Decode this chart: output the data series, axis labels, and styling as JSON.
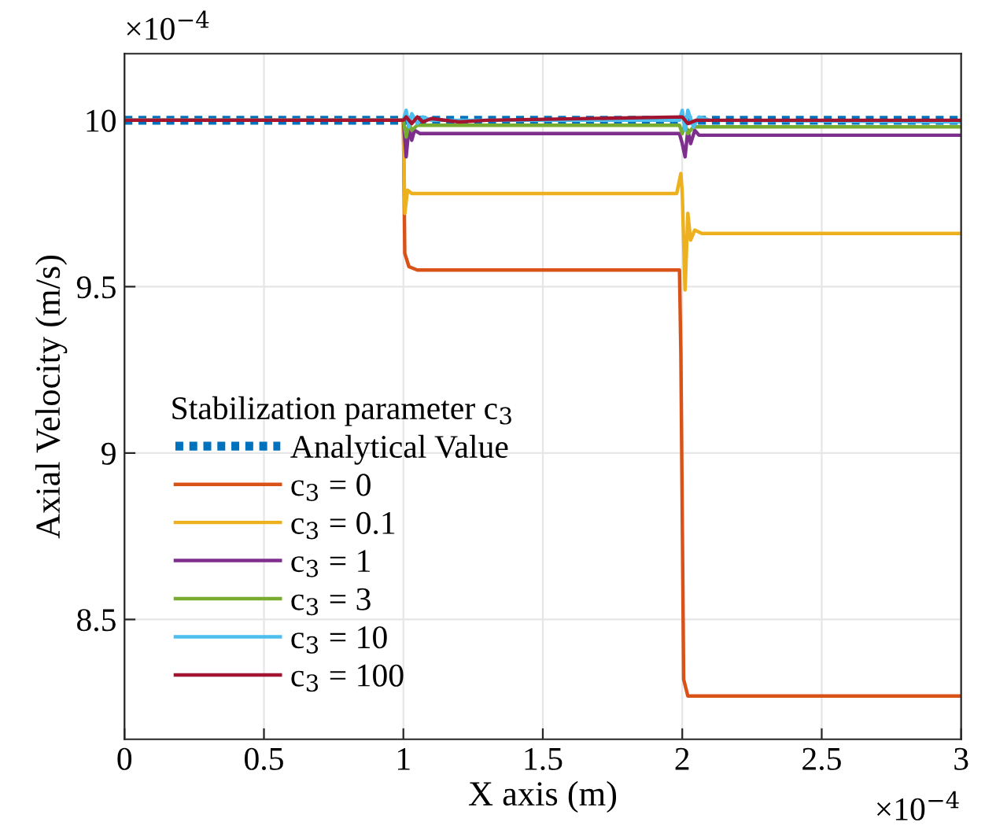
{
  "chart_data": {
    "type": "line",
    "xlabel": "X axis (m)",
    "ylabel": "Axial Velocity (m/s)",
    "legend_title": "Stabilization parameter c$_{3}$",
    "annotations": [
      "×10$^{−4}$",
      "×10$^{−4}$"
    ],
    "xlim": [
      0,
      3
    ],
    "xticks": [
      0,
      0.5,
      1,
      1.5,
      2,
      2.5,
      3
    ],
    "ylim": [
      8.14,
      10.2
    ],
    "yticks": [
      8.5,
      9,
      9.5,
      10
    ],
    "grid": true,
    "legend": "bottom left",
    "series": [
      {
        "name": "Analytical Value",
        "color": "#0072bd",
        "line_style": "dotted",
        "x": [
          0,
          3
        ],
        "values": [
          10,
          10
        ]
      },
      {
        "name": "c$_{3}$ = 0",
        "color": "#d95319",
        "x": [
          0,
          1,
          1.005,
          1.02,
          1.05,
          1.99,
          1.995,
          2.005,
          2.02,
          3
        ],
        "values": [
          10,
          10,
          9.6,
          9.56,
          9.55,
          9.55,
          9.3,
          8.32,
          8.27,
          8.27
        ]
      },
      {
        "name": "c$_{3}$ = 0.1",
        "color": "#edb120",
        "x": [
          0,
          1,
          1.005,
          1.015,
          1.03,
          1.98,
          1.995,
          2.0,
          2.01,
          2.02,
          2.03,
          2.045,
          2.07,
          3
        ],
        "values": [
          10,
          10,
          9.72,
          9.79,
          9.78,
          9.78,
          9.84,
          9.78,
          9.49,
          9.72,
          9.64,
          9.67,
          9.66,
          9.66
        ]
      },
      {
        "name": "c$_{3}$ = 1",
        "color": "#7e2f8e",
        "x": [
          0,
          1,
          1.01,
          1.02,
          1.03,
          1.04,
          1.06,
          1.99,
          2.0,
          2.01,
          2.02,
          2.03,
          2.045,
          2.06,
          3
        ],
        "values": [
          10,
          10,
          9.89,
          9.98,
          9.94,
          9.97,
          9.96,
          9.96,
          9.93,
          9.89,
          9.97,
          9.93,
          9.97,
          9.955,
          9.955
        ]
      },
      {
        "name": "c$_{3}$ = 3",
        "color": "#77ac30",
        "x": [
          0,
          1,
          1.01,
          1.02,
          1.03,
          1.05,
          1.99,
          2.0,
          2.01,
          2.02,
          2.04,
          3
        ],
        "values": [
          10,
          10,
          9.95,
          9.99,
          9.97,
          9.985,
          9.985,
          9.96,
          9.99,
          9.96,
          9.98,
          9.98
        ]
      },
      {
        "name": "c$_{3}$ = 10",
        "color": "#4dbeee",
        "x": [
          0,
          1,
          1.01,
          1.02,
          1.03,
          1.05,
          1.07,
          1.1,
          1.99,
          2.0,
          2.01,
          2.02,
          2.04,
          2.06,
          2.1,
          3
        ],
        "values": [
          10,
          10,
          10.03,
          9.98,
          10.02,
          9.99,
          10.01,
          10.0,
          10.0,
          10.03,
          9.97,
          10.03,
          9.98,
          10.01,
          10.0,
          9.995
        ]
      },
      {
        "name": "c$_{3}$ = 100",
        "color": "#a2142f",
        "x": [
          0,
          1,
          1.01,
          1.03,
          1.05,
          1.07,
          1.1,
          1.2,
          1.3,
          2.0,
          2.02,
          2.05,
          3
        ],
        "values": [
          10,
          10,
          10.01,
          9.99,
          10.01,
          9.995,
          10.005,
          9.995,
          10.0,
          10.01,
          9.99,
          10.0,
          10.0
        ]
      }
    ]
  }
}
